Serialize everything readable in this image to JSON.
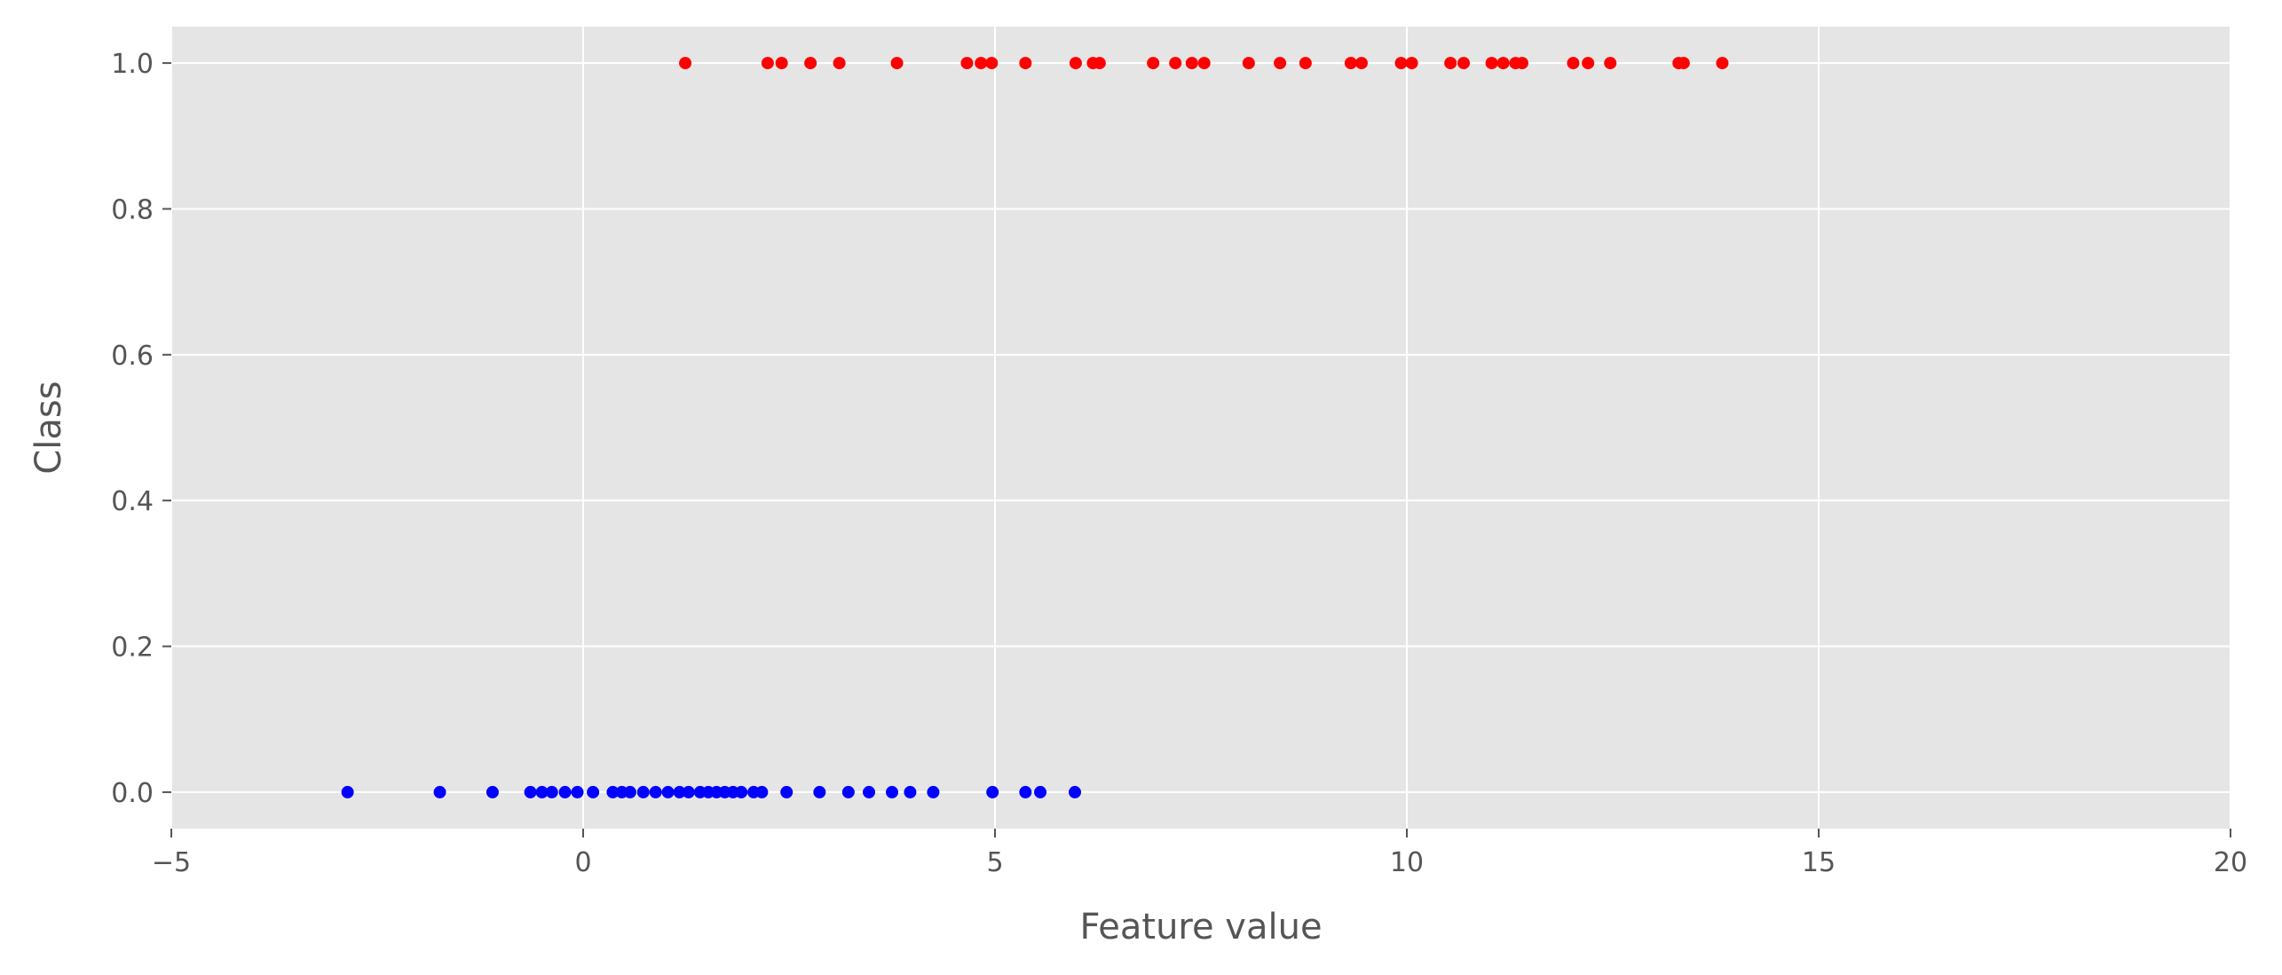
{
  "chart_data": {
    "type": "scatter",
    "title": "",
    "xlabel": "Feature value",
    "ylabel": "Class",
    "xlim": [
      -5,
      20
    ],
    "ylim": [
      -0.05,
      1.05
    ],
    "grid": true,
    "background": "#e5e5e5",
    "grid_color": "#ffffff",
    "x_ticks": [
      {
        "value": -5,
        "label": "−5"
      },
      {
        "value": 0,
        "label": "0"
      },
      {
        "value": 5,
        "label": "5"
      },
      {
        "value": 10,
        "label": "10"
      },
      {
        "value": 15,
        "label": "15"
      },
      {
        "value": 20,
        "label": "20"
      }
    ],
    "y_ticks": [
      {
        "value": 0.0,
        "label": "0.0"
      },
      {
        "value": 0.2,
        "label": "0.2"
      },
      {
        "value": 0.4,
        "label": "0.4"
      },
      {
        "value": 0.6,
        "label": "0.6"
      },
      {
        "value": 0.8,
        "label": "0.8"
      },
      {
        "value": 1.0,
        "label": "1.0"
      }
    ],
    "series": [
      {
        "color": "#0000ff",
        "y": 0,
        "x": [
          -2.86,
          -1.74,
          -1.1,
          -0.64,
          -0.5,
          -0.38,
          -0.22,
          -0.07,
          0.12,
          0.36,
          0.47,
          0.57,
          0.73,
          0.88,
          1.03,
          1.17,
          1.28,
          1.42,
          1.52,
          1.62,
          1.72,
          1.82,
          1.92,
          2.07,
          2.17,
          2.47,
          2.87,
          3.22,
          3.47,
          3.75,
          3.97,
          4.25,
          4.97,
          5.37,
          5.55,
          5.97
        ]
      },
      {
        "color": "#ff0000",
        "y": 1,
        "x": [
          1.24,
          2.24,
          2.41,
          2.76,
          3.11,
          3.81,
          4.66,
          4.83,
          4.96,
          5.37,
          5.98,
          6.19,
          6.27,
          6.92,
          7.19,
          7.39,
          7.54,
          8.08,
          8.46,
          8.77,
          9.32,
          9.45,
          9.93,
          10.06,
          10.53,
          10.69,
          11.03,
          11.17,
          11.32,
          11.4,
          12.02,
          12.2,
          12.47,
          13.3,
          13.36,
          13.83
        ]
      }
    ]
  }
}
